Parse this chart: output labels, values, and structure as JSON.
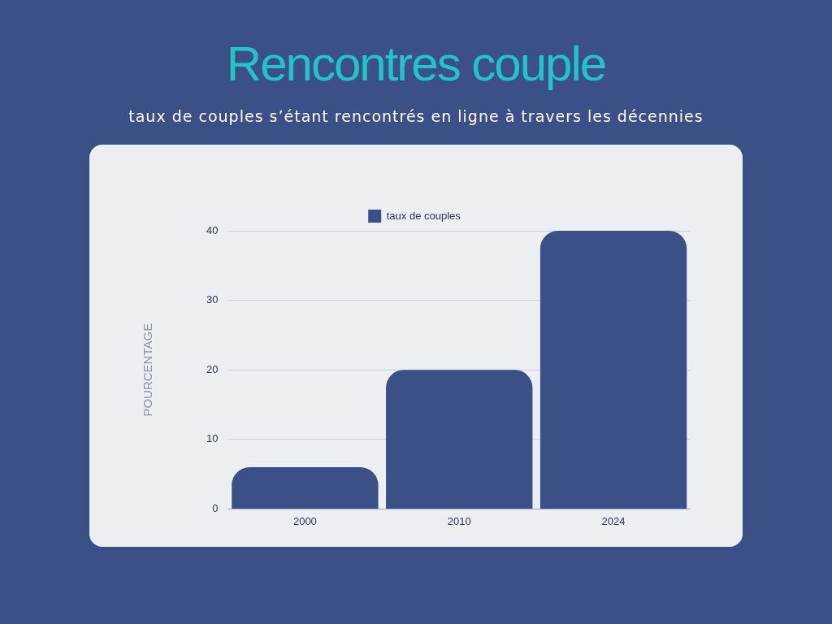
{
  "chart_data": {
    "type": "bar",
    "title": "Rencontres couple",
    "subtitle": "taux de couples s’étant rencontrés en ligne à travers les décennies",
    "ylabel": "POURCENTAGE",
    "categories": [
      "2000",
      "2010",
      "2024"
    ],
    "series": [
      {
        "name": "taux de couples",
        "color": "#3c5088",
        "values": [
          6,
          20,
          40
        ]
      }
    ],
    "ylim": [
      0,
      40
    ],
    "yticks": [
      0,
      10,
      20,
      30,
      40
    ],
    "grid": "y",
    "legend": "top"
  }
}
